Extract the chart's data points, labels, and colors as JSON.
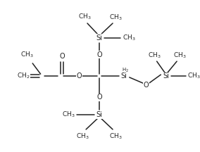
{
  "bg_color": "#ffffff",
  "line_color": "#222222",
  "text_color": "#222222",
  "figsize": [
    2.84,
    2.16
  ],
  "dpi": 100,
  "font_size": 7.0,
  "bond_lw": 1.1,
  "xlim": [
    0,
    284
  ],
  "ylim": [
    0,
    216
  ]
}
